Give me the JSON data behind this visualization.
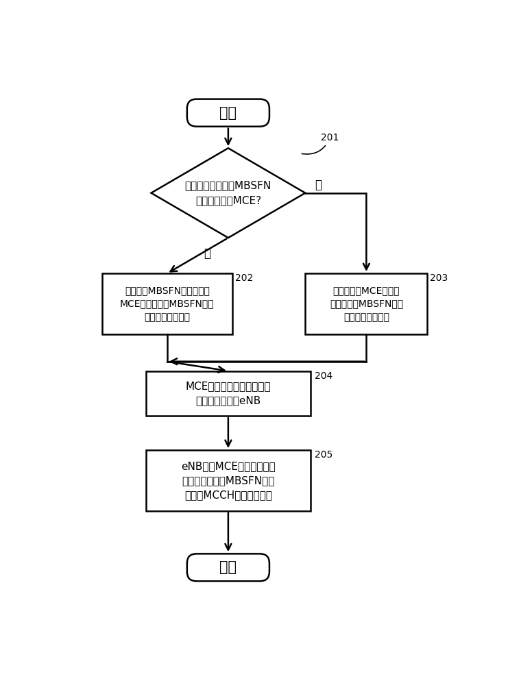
{
  "bg_color": "#ffffff",
  "text_color": "#000000",
  "line_color": "#000000",
  "fig_width": 7.41,
  "fig_height": 10.0,
  "start_label": "开始",
  "end_label": "结束",
  "diamond_line1": "小区中包括的多个MBSFN",
  "diamond_line2": "区域属于同一MCE?",
  "box202_line1": "所述多个MBSFN区域所属的",
  "box202_line2": "MCE对所述多个MBSFN区域",
  "box202_line3": "进行无线资源划分",
  "box203_line1": "所述不同的MCE通过协",
  "box203_line2": "商对相应的MBSFN区域",
  "box203_line3": "进行无线资源划分",
  "box204_line1": "MCE将无线资源划分情况发",
  "box204_line2": "送给小区所属的eNB",
  "box205_line1": "eNB根据MCE对无线资源的",
  "box205_line2": "划分情况为多个MBSFN区域",
  "box205_line3": "对应的MCCH分配无线资源",
  "label201": "201",
  "label202": "202",
  "label203": "203",
  "label204": "204",
  "label205": "205",
  "yes_label": "是",
  "no_label": "否"
}
